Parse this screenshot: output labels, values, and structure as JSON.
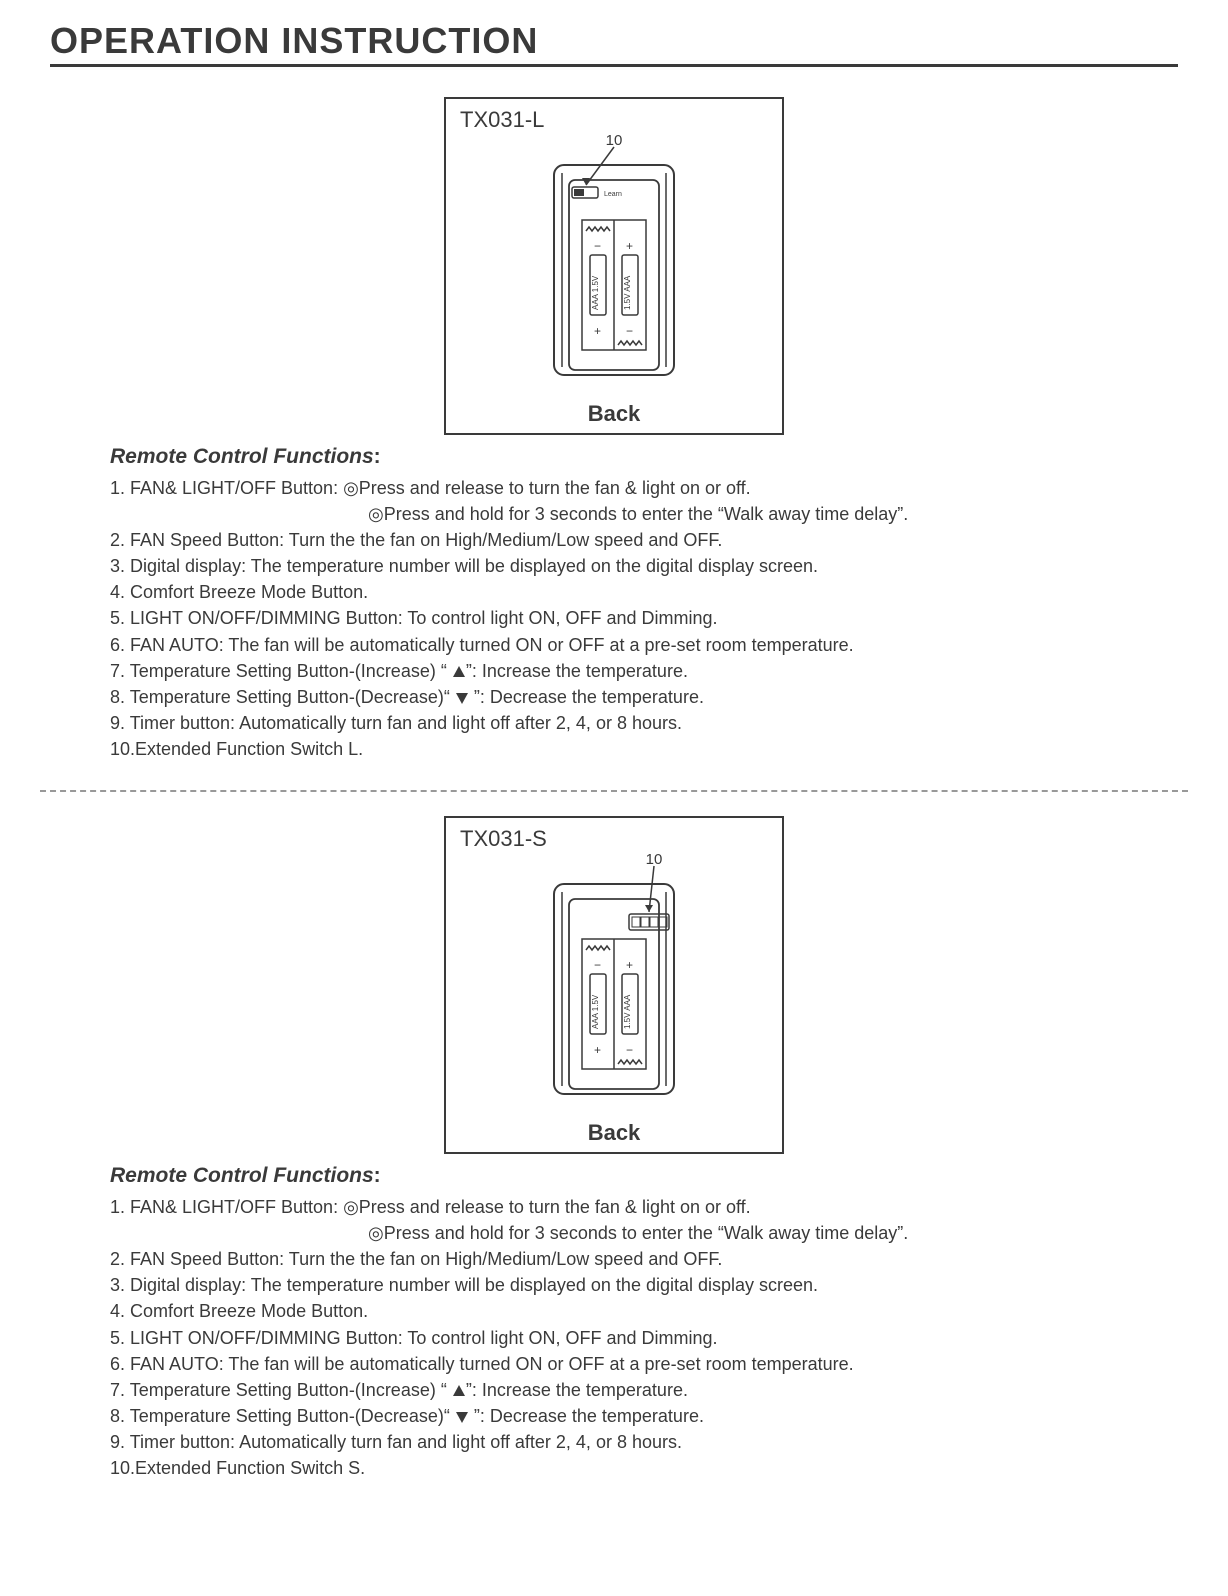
{
  "title": "OPERATION INSTRUCTION",
  "colors": {
    "line": "#3a3a3a",
    "bg": "#ffffff",
    "dash": "#999999"
  },
  "sections": [
    {
      "model": "TX031-L",
      "callout": "10",
      "back_label": "Back",
      "diagram": {
        "switch_position": "top-left",
        "battery_labels": [
          "AAA 1.5V",
          "1.5V AAA"
        ],
        "spring_count": 2
      },
      "heading": "Remote Control Functions",
      "lines": [
        {
          "text": "1. FAN& LIGHT/OFF Button: ◎Press and release to turn the fan & light on or off."
        },
        {
          "text": "◎Press and hold for 3 seconds to enter the “Walk away time delay”.",
          "indent": true
        },
        {
          "text": "2. FAN Speed Button: Turn the the fan on High/Medium/Low speed and OFF."
        },
        {
          "text": "3. Digital display: The temperature number will be displayed on the digital display screen."
        },
        {
          "text": "4. Comfort Breeze Mode Button."
        },
        {
          "text": "5. LIGHT ON/OFF/DIMMING Button: To control light ON, OFF and Dimming."
        },
        {
          "text": "6. FAN AUTO: The fan will be automatically turned ON or OFF at a pre-set room temperature."
        },
        {
          "text_pre": "7. Temperature Setting Button-(Increase) “ ",
          "sym": "up",
          "text_post": "”: Increase the temperature."
        },
        {
          "text_pre": "8. Temperature Setting Button-(Decrease)“ ",
          "sym": "down",
          "text_post": " ”: Decrease the temperature."
        },
        {
          "text": "9. Timer button: Automatically turn fan and light off after 2, 4, or 8 hours."
        },
        {
          "text": "10.Extended Function Switch L."
        }
      ]
    },
    {
      "model": "TX031-S",
      "callout": "10",
      "back_label": "Back",
      "diagram": {
        "switch_position": "top-right-dip",
        "battery_labels": [
          "AAA 1.5V",
          "1.5V AAA"
        ],
        "spring_count": 2
      },
      "heading": "Remote Control Functions",
      "lines": [
        {
          "text": "1. FAN& LIGHT/OFF Button: ◎Press and release to turn the fan & light on or off."
        },
        {
          "text": "◎Press and hold for 3 seconds to enter the “Walk away time delay”.",
          "indent": true
        },
        {
          "text": "2. FAN Speed Button: Turn the the fan on High/Medium/Low speed and OFF."
        },
        {
          "text": "3. Digital display: The temperature number will be displayed on the digital display screen."
        },
        {
          "text": "4. Comfort Breeze Mode Button."
        },
        {
          "text": "5. LIGHT ON/OFF/DIMMING Button: To control light ON, OFF and Dimming."
        },
        {
          "text": "6. FAN AUTO: The fan will be automatically turned ON or OFF at a pre-set room temperature."
        },
        {
          "text_pre": "7. Temperature Setting Button-(Increase) “ ",
          "sym": "up",
          "text_post": "”: Increase the temperature."
        },
        {
          "text_pre": "8. Temperature Setting Button-(Decrease)“ ",
          "sym": "down",
          "text_post": " ”: Decrease the temperature."
        },
        {
          "text": "9. Timer button: Automatically turn fan and light off after 2, 4, or 8 hours."
        },
        {
          "text": "10.Extended Function Switch S."
        }
      ]
    }
  ]
}
